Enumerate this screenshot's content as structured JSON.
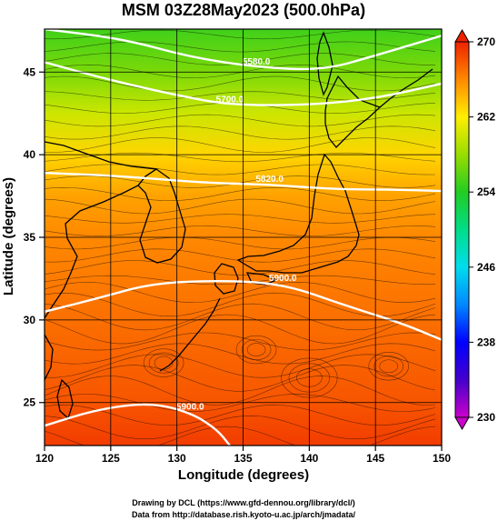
{
  "chart_data": {
    "type": "heatmap",
    "title": "MSM 03Z28May2023 (500.0hPa)",
    "xlabel": "Longitude (degrees)",
    "ylabel": "Latitude  (degrees)",
    "xlim": [
      120,
      150
    ],
    "ylim": [
      22.4,
      47.6
    ],
    "xticks": [
      120,
      125,
      130,
      135,
      140,
      145,
      150
    ],
    "yticks": [
      25,
      30,
      35,
      40,
      45
    ],
    "grid": true,
    "colorbar": {
      "range": [
        230,
        270
      ],
      "ticks": [
        230,
        238,
        246,
        254,
        262,
        270
      ],
      "stops": [
        {
          "v": 230,
          "c": "#cc00cc"
        },
        {
          "v": 234,
          "c": "#4400cc"
        },
        {
          "v": 238,
          "c": "#0000ff"
        },
        {
          "v": 242,
          "c": "#0088ff"
        },
        {
          "v": 246,
          "c": "#00ddee"
        },
        {
          "v": 250,
          "c": "#00dd88"
        },
        {
          "v": 254,
          "c": "#22cc22"
        },
        {
          "v": 258,
          "c": "#99dd00"
        },
        {
          "v": 262,
          "c": "#ffee00"
        },
        {
          "v": 266,
          "c": "#ff8800"
        },
        {
          "v": 270,
          "c": "#ee2200"
        }
      ]
    },
    "field_rows": [
      {
        "lat": 47.6,
        "value": 255
      },
      {
        "lat": 45.0,
        "value": 257
      },
      {
        "lat": 42.5,
        "value": 260
      },
      {
        "lat": 40.0,
        "value": 263
      },
      {
        "lat": 37.5,
        "value": 265
      },
      {
        "lat": 35.0,
        "value": 266
      },
      {
        "lat": 30.0,
        "value": 267
      },
      {
        "lat": 25.0,
        "value": 268
      },
      {
        "lat": 22.4,
        "value": 269
      }
    ],
    "height_contours": [
      {
        "label": "5580.0",
        "points": [
          [
            120,
            47.6
          ],
          [
            126,
            47.0
          ],
          [
            131,
            45.9
          ],
          [
            136,
            45.3
          ],
          [
            141,
            45.1
          ],
          [
            145,
            46.0
          ],
          [
            150,
            47.2
          ]
        ]
      },
      {
        "label": "5700.0",
        "points": [
          [
            120,
            45.6
          ],
          [
            125,
            44.5
          ],
          [
            130,
            43.6
          ],
          [
            134,
            43.0
          ],
          [
            140,
            43.0
          ],
          [
            145,
            43.4
          ],
          [
            150,
            44.3
          ]
        ]
      },
      {
        "label": "5820.0",
        "points": [
          [
            120,
            38.9
          ],
          [
            126,
            38.7
          ],
          [
            132,
            38.3
          ],
          [
            137,
            38.2
          ],
          [
            142,
            37.9
          ],
          [
            146,
            37.9
          ],
          [
            150,
            37.8
          ]
        ]
      },
      {
        "label": "5900.0",
        "points": [
          [
            120,
            30.5
          ],
          [
            124,
            31.3
          ],
          [
            128,
            32.2
          ],
          [
            133,
            32.4
          ],
          [
            138,
            32.2
          ],
          [
            143,
            30.8
          ],
          [
            147,
            29.8
          ],
          [
            150,
            28.8
          ]
        ]
      },
      {
        "label": "5900.0",
        "points": [
          [
            120,
            23.6
          ],
          [
            124,
            24.6
          ],
          [
            128,
            25.0
          ],
          [
            131,
            24.4
          ],
          [
            133,
            23.4
          ],
          [
            134,
            22.4
          ]
        ]
      }
    ],
    "credits": [
      "Drawing by DCL (https://www.gfd-dennou.org/library/dcl/)",
      "Data from http://database.rish.kyoto-u.ac.jp/arch/jmadata/"
    ]
  }
}
